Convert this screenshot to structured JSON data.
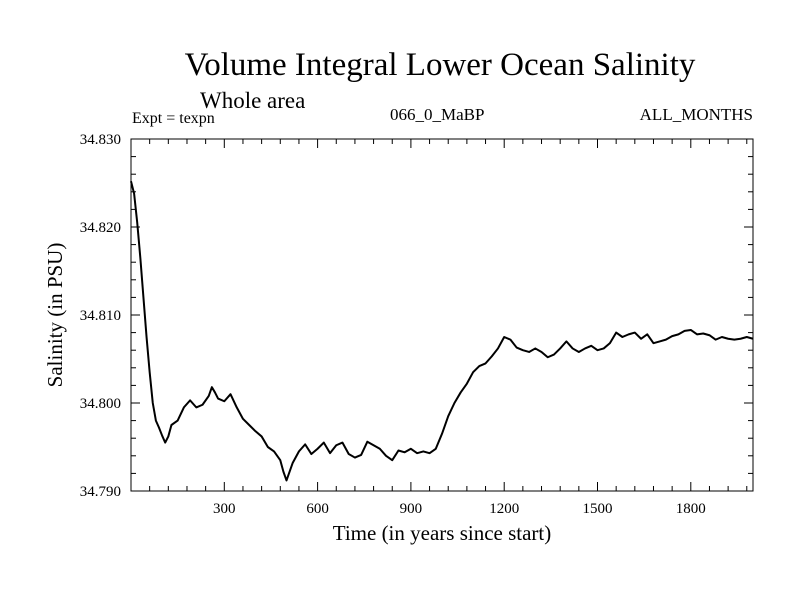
{
  "header": {
    "title": "Volume Integral Lower Ocean Salinity",
    "subtitle": "Whole area",
    "expt": "Expt = texpn",
    "code": "066_0_MaBP",
    "months": "ALL_MONTHS"
  },
  "chart_data": {
    "type": "line",
    "title": "Volume Integral Lower Ocean Salinity",
    "subtitle": "Whole area",
    "xlabel": "Time (in years since start)",
    "ylabel": "Salinity (in PSU)",
    "xlim": [
      0,
      2000
    ],
    "ylim": [
      34.79,
      34.83
    ],
    "x_ticks": [
      300,
      600,
      900,
      1200,
      1500,
      1800
    ],
    "x_tick_labels": [
      "300",
      "600",
      "900",
      "1200",
      "1500",
      "1800"
    ],
    "y_ticks": [
      34.79,
      34.8,
      34.81,
      34.82,
      34.83
    ],
    "y_tick_labels": [
      "34.790",
      "34.800",
      "34.810",
      "34.820",
      "34.830"
    ],
    "grid": false,
    "series": [
      {
        "name": "Salinity",
        "color": "#000000",
        "x": [
          0,
          10,
          20,
          30,
          40,
          50,
          60,
          70,
          80,
          90,
          100,
          110,
          120,
          130,
          150,
          170,
          190,
          210,
          230,
          250,
          260,
          270,
          280,
          300,
          320,
          340,
          360,
          380,
          400,
          420,
          440,
          460,
          480,
          490,
          500,
          520,
          540,
          560,
          580,
          600,
          620,
          640,
          660,
          680,
          700,
          720,
          740,
          760,
          780,
          800,
          820,
          840,
          860,
          880,
          900,
          920,
          940,
          960,
          980,
          1000,
          1020,
          1040,
          1060,
          1080,
          1100,
          1120,
          1140,
          1160,
          1180,
          1200,
          1220,
          1240,
          1260,
          1280,
          1300,
          1320,
          1340,
          1360,
          1380,
          1400,
          1420,
          1440,
          1460,
          1480,
          1500,
          1520,
          1540,
          1560,
          1580,
          1600,
          1620,
          1640,
          1660,
          1680,
          1700,
          1720,
          1740,
          1760,
          1780,
          1800,
          1820,
          1840,
          1860,
          1880,
          1900,
          1920,
          1940,
          1960,
          1980,
          2000
        ],
        "values": [
          34.8252,
          34.8238,
          34.8205,
          34.8165,
          34.812,
          34.8075,
          34.8035,
          34.8,
          34.798,
          34.7972,
          34.7963,
          34.7955,
          34.7962,
          34.7975,
          34.798,
          34.7995,
          34.8003,
          34.7995,
          34.7998,
          34.8008,
          34.8018,
          34.8012,
          34.8005,
          34.8002,
          34.801,
          34.7995,
          34.7982,
          34.7975,
          34.7968,
          34.7962,
          34.795,
          34.7945,
          34.7935,
          34.7922,
          34.7912,
          34.7932,
          34.7945,
          34.7953,
          34.7942,
          34.7948,
          34.7955,
          34.7943,
          34.7952,
          34.7955,
          34.7942,
          34.7938,
          34.7941,
          34.7956,
          34.7952,
          34.7948,
          34.794,
          34.7935,
          34.7946,
          34.7944,
          34.7948,
          34.7943,
          34.7945,
          34.7943,
          34.7948,
          34.7965,
          34.7985,
          34.8,
          34.8012,
          34.8022,
          34.8035,
          34.8042,
          34.8045,
          34.8053,
          34.8062,
          34.8075,
          34.8072,
          34.8063,
          34.806,
          34.8058,
          34.8062,
          34.8058,
          34.8052,
          34.8055,
          34.8062,
          34.807,
          34.8062,
          34.8058,
          34.8062,
          34.8065,
          34.806,
          34.8062,
          34.8068,
          34.808,
          34.8075,
          34.8078,
          34.808,
          34.8073,
          34.8078,
          34.8068,
          34.807,
          34.8072,
          34.8076,
          34.8078,
          34.8082,
          34.8083,
          34.8078,
          34.8079,
          34.8077,
          34.8072,
          34.8075,
          34.8073,
          34.8072,
          34.8073,
          34.8075,
          34.8073
        ]
      }
    ]
  }
}
